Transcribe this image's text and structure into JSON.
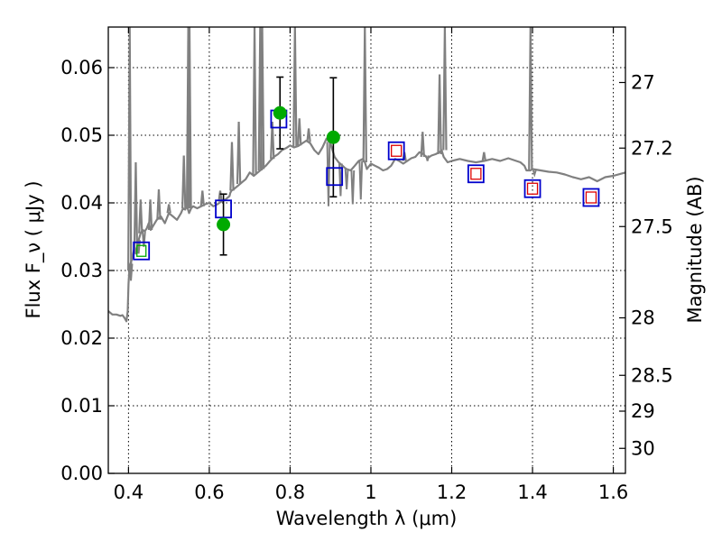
{
  "chart_data": {
    "type": "scatter",
    "title": "",
    "xlabel": "Wavelength  λ (μm)",
    "ylabel": "Flux  F_ν  ( μJy )",
    "y2label": "Magnitude (AB)",
    "xlim": [
      0.35,
      1.63
    ],
    "ylim": [
      0.0,
      0.066
    ],
    "grid": true,
    "x_ticks": [
      0.4,
      0.6,
      0.8,
      1.0,
      1.2,
      1.4,
      1.6
    ],
    "x_tick_labels": [
      "0.4",
      "0.6",
      "0.8",
      "1",
      "1.2",
      "1.4",
      "1.6"
    ],
    "y_ticks": [
      0.0,
      0.01,
      0.02,
      0.03,
      0.04,
      0.05,
      0.06
    ],
    "y_tick_labels": [
      "0.00",
      "0.01",
      "0.02",
      "0.03",
      "0.04",
      "0.05",
      "0.06"
    ],
    "y2_ticks": [
      {
        "label": "27",
        "flux": 0.0578
      },
      {
        "label": "27.2",
        "flux": 0.0481
      },
      {
        "label": "27.5",
        "flux": 0.0365
      },
      {
        "label": "28",
        "flux": 0.023
      },
      {
        "label": "28.5",
        "flux": 0.0145
      },
      {
        "label": "29",
        "flux": 0.0092
      },
      {
        "label": "30",
        "flux": 0.0037
      }
    ],
    "colors": {
      "template": "#808080",
      "model_box": "#0000cc",
      "observed_point": "#00aa00",
      "upper_band_box": "#dd0000",
      "errorbar": "#000000",
      "grid": "#000000"
    },
    "series": [
      {
        "role": "template_spectrum",
        "marker": "line",
        "x": [
          0.35,
          0.36,
          0.37,
          0.38,
          0.385,
          0.39,
          0.395,
          0.398,
          0.4,
          0.402,
          0.405,
          0.41,
          0.415,
          0.418,
          0.42,
          0.425,
          0.43,
          0.435,
          0.44,
          0.445,
          0.45,
          0.455,
          0.46,
          0.47,
          0.48,
          0.49,
          0.5,
          0.51,
          0.52,
          0.53,
          0.535,
          0.54,
          0.545,
          0.55,
          0.555,
          0.56,
          0.57,
          0.58,
          0.59,
          0.6,
          0.61,
          0.62,
          0.63,
          0.64,
          0.65,
          0.652,
          0.655,
          0.66,
          0.67,
          0.68,
          0.69,
          0.7,
          0.71,
          0.72,
          0.73,
          0.74,
          0.75,
          0.76,
          0.77,
          0.78,
          0.79,
          0.8,
          0.81,
          0.82,
          0.83,
          0.84,
          0.85,
          0.86,
          0.87,
          0.88,
          0.89,
          0.9,
          0.91,
          0.92,
          0.93,
          0.935,
          0.94,
          0.95,
          0.96,
          0.97,
          0.98,
          0.985,
          0.99,
          1.0,
          1.01,
          1.02,
          1.03,
          1.04,
          1.05,
          1.06,
          1.07,
          1.08,
          1.09,
          1.1,
          1.11,
          1.12,
          1.13,
          1.14,
          1.15,
          1.16,
          1.17,
          1.175,
          1.18,
          1.19,
          1.2,
          1.22,
          1.24,
          1.26,
          1.28,
          1.3,
          1.32,
          1.34,
          1.36,
          1.37,
          1.38,
          1.385,
          1.39,
          1.395,
          1.4,
          1.42,
          1.44,
          1.46,
          1.48,
          1.5,
          1.52,
          1.54,
          1.56,
          1.58,
          1.6,
          1.63
        ],
        "y": [
          0.024,
          0.0235,
          0.0235,
          0.0233,
          0.0234,
          0.023,
          0.0225,
          0.024,
          0.028,
          0.03,
          0.031,
          0.032,
          0.0335,
          0.0325,
          0.033,
          0.0345,
          0.0355,
          0.036,
          0.0358,
          0.0362,
          0.037,
          0.036,
          0.0365,
          0.0375,
          0.038,
          0.037,
          0.0385,
          0.038,
          0.0375,
          0.0385,
          0.0392,
          0.039,
          0.0395,
          0.0385,
          0.0392,
          0.0395,
          0.0392,
          0.0395,
          0.0398,
          0.04,
          0.0395,
          0.0398,
          0.0402,
          0.0405,
          0.041,
          0.0415,
          0.0418,
          0.042,
          0.0425,
          0.043,
          0.0435,
          0.0445,
          0.044,
          0.0445,
          0.045,
          0.0455,
          0.0462,
          0.0468,
          0.0472,
          0.0478,
          0.0481,
          0.0485,
          0.0482,
          0.0484,
          0.0488,
          0.0492,
          0.0488,
          0.0478,
          0.0472,
          0.0482,
          0.0495,
          0.0488,
          0.0468,
          0.046,
          0.0455,
          0.0452,
          0.045,
          0.0448,
          0.0455,
          0.0462,
          0.0465,
          0.046,
          0.045,
          0.0458,
          0.0455,
          0.0452,
          0.0448,
          0.045,
          0.0455,
          0.0465,
          0.0462,
          0.0458,
          0.0462,
          0.0466,
          0.0468,
          0.0475,
          0.0472,
          0.0466,
          0.047,
          0.0472,
          0.0475,
          0.0478,
          0.0468,
          0.046,
          0.0462,
          0.0465,
          0.0462,
          0.046,
          0.0462,
          0.0465,
          0.0462,
          0.0466,
          0.0462,
          0.046,
          0.0455,
          0.0448,
          0.0448,
          0.0448,
          0.045,
          0.0448,
          0.0446,
          0.0445,
          0.0442,
          0.0438,
          0.0435,
          0.0438,
          0.0432,
          0.0438,
          0.044,
          0.0445
        ]
      },
      {
        "role": "template_emission_lines",
        "marker": "spike",
        "lines": [
          {
            "x": 0.403,
            "base": 0.03,
            "peak": 0.066
          },
          {
            "x": 0.418,
            "base": 0.0325,
            "peak": 0.046
          },
          {
            "x": 0.43,
            "base": 0.0355,
            "peak": 0.0405
          },
          {
            "x": 0.454,
            "base": 0.036,
            "peak": 0.0405
          },
          {
            "x": 0.475,
            "base": 0.0375,
            "peak": 0.042
          },
          {
            "x": 0.5,
            "base": 0.0385,
            "peak": 0.0398
          },
          {
            "x": 0.537,
            "base": 0.0392,
            "peak": 0.047
          },
          {
            "x": 0.548,
            "base": 0.0392,
            "peak": 0.066
          },
          {
            "x": 0.551,
            "base": 0.0392,
            "peak": 0.066
          },
          {
            "x": 0.583,
            "base": 0.0395,
            "peak": 0.0418
          },
          {
            "x": 0.627,
            "base": 0.0402,
            "peak": 0.0418
          },
          {
            "x": 0.656,
            "base": 0.0418,
            "peak": 0.049
          },
          {
            "x": 0.673,
            "base": 0.0428,
            "peak": 0.052
          },
          {
            "x": 0.712,
            "base": 0.0442,
            "peak": 0.066
          },
          {
            "x": 0.726,
            "base": 0.0448,
            "peak": 0.066
          },
          {
            "x": 0.731,
            "base": 0.045,
            "peak": 0.066
          },
          {
            "x": 0.756,
            "base": 0.0465,
            "peak": 0.052
          },
          {
            "x": 0.812,
            "base": 0.0483,
            "peak": 0.066
          },
          {
            "x": 0.823,
            "base": 0.0485,
            "peak": 0.0525
          },
          {
            "x": 0.846,
            "base": 0.049,
            "peak": 0.051
          },
          {
            "x": 0.985,
            "base": 0.046,
            "peak": 0.066
          },
          {
            "x": 1.083,
            "base": 0.0462,
            "peak": 0.0475
          },
          {
            "x": 1.128,
            "base": 0.0468,
            "peak": 0.0505
          },
          {
            "x": 1.17,
            "base": 0.0472,
            "peak": 0.059
          },
          {
            "x": 1.183,
            "base": 0.0478,
            "peak": 0.066
          },
          {
            "x": 1.28,
            "base": 0.0462,
            "peak": 0.0475
          },
          {
            "x": 1.395,
            "base": 0.0448,
            "peak": 0.066
          }
        ]
      },
      {
        "role": "template_absorption_lines",
        "marker": "dip",
        "lines": [
          {
            "x": 0.406,
            "top": 0.031,
            "bottom": 0.0285
          },
          {
            "x": 0.425,
            "top": 0.0345,
            "bottom": 0.0325
          },
          {
            "x": 0.438,
            "top": 0.0358,
            "bottom": 0.0335
          },
          {
            "x": 0.895,
            "top": 0.049,
            "bottom": 0.0395
          },
          {
            "x": 0.925,
            "top": 0.0458,
            "bottom": 0.041
          },
          {
            "x": 0.94,
            "top": 0.045,
            "bottom": 0.042
          },
          {
            "x": 0.955,
            "top": 0.0448,
            "bottom": 0.0398
          },
          {
            "x": 0.975,
            "top": 0.0462,
            "bottom": 0.0405
          },
          {
            "x": 1.14,
            "top": 0.047,
            "bottom": 0.0462
          },
          {
            "x": 1.405,
            "top": 0.0448,
            "bottom": 0.0442
          }
        ]
      },
      {
        "role": "model_photometry",
        "marker": "square-open",
        "x": [
          0.432,
          0.635,
          0.772,
          0.91,
          1.063,
          1.26,
          1.4,
          1.545
        ],
        "y": [
          0.0329,
          0.0391,
          0.0524,
          0.0439,
          0.0477,
          0.0443,
          0.0421,
          0.0408
        ]
      },
      {
        "role": "observed_photometry",
        "marker": "circle-filled",
        "x": [
          0.635,
          0.775,
          0.907
        ],
        "y": [
          0.0368,
          0.0533,
          0.0497
        ],
        "err_low": [
          0.0045,
          0.0053,
          0.0088
        ],
        "err_high": [
          0.0045,
          0.0053,
          0.0088
        ]
      },
      {
        "role": "upper_band_points",
        "marker": "square-small-open",
        "x": [
          1.063,
          1.26,
          1.4,
          1.545
        ],
        "y": [
          0.0477,
          0.0443,
          0.0421,
          0.0408
        ]
      }
    ]
  }
}
